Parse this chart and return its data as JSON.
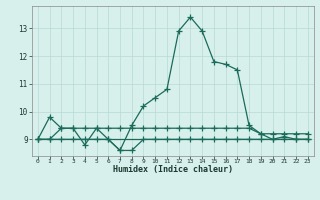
{
  "x": [
    0,
    1,
    2,
    3,
    4,
    5,
    6,
    7,
    8,
    9,
    10,
    11,
    12,
    13,
    14,
    15,
    16,
    17,
    18,
    19,
    20,
    21,
    22,
    23
  ],
  "main_line": [
    9.0,
    9.8,
    9.4,
    9.4,
    8.8,
    9.4,
    9.0,
    8.6,
    9.5,
    10.2,
    10.5,
    10.8,
    12.9,
    13.4,
    12.9,
    11.8,
    11.7,
    11.5,
    9.5,
    9.2,
    9.0,
    9.1,
    9.0,
    9.0
  ],
  "flat_line1": [
    9.0,
    9.0,
    9.4,
    9.4,
    9.4,
    9.4,
    9.4,
    9.4,
    9.4,
    9.4,
    9.4,
    9.4,
    9.4,
    9.4,
    9.4,
    9.4,
    9.4,
    9.4,
    9.4,
    9.2,
    9.2,
    9.2,
    9.2,
    9.2
  ],
  "flat_line2": [
    9.0,
    9.0,
    9.0,
    9.0,
    9.0,
    9.0,
    9.0,
    8.6,
    8.6,
    9.0,
    9.0,
    9.0,
    9.0,
    9.0,
    9.0,
    9.0,
    9.0,
    9.0,
    9.0,
    9.0,
    9.0,
    9.0,
    9.0,
    9.0
  ],
  "flat_line3": [
    9.0,
    9.0,
    9.0,
    9.0,
    9.0,
    9.0,
    9.0,
    9.0,
    9.0,
    9.0,
    9.0,
    9.0,
    9.0,
    9.0,
    9.0,
    9.0,
    9.0,
    9.0,
    9.0,
    9.0,
    9.0,
    9.0,
    9.0,
    9.0
  ],
  "line_color": "#1a6b5a",
  "bg_color": "#d8f0ec",
  "grid_color": "#b8d8d4",
  "xlabel": "Humidex (Indice chaleur)",
  "ylim": [
    8.4,
    13.8
  ],
  "yticks": [
    9,
    10,
    11,
    12,
    13
  ],
  "xtick_labels": [
    "0",
    "1",
    "2",
    "3",
    "4",
    "5",
    "6",
    "7",
    "8",
    "9",
    "10",
    "11",
    "12",
    "13",
    "14",
    "15",
    "16",
    "17",
    "18",
    "19",
    "20",
    "21",
    "22",
    "23"
  ],
  "marker": "+",
  "markersize": 4,
  "linewidth": 0.9
}
